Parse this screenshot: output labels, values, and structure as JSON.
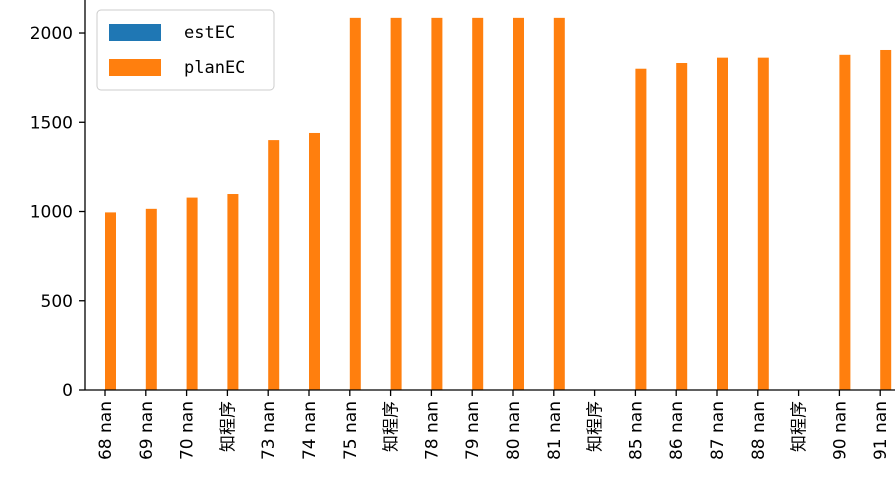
{
  "chart_data": {
    "type": "bar",
    "categories": [
      "68 nan",
      "69 nan",
      "70 nan",
      "知程序",
      "73 nan",
      "74 nan",
      "75 nan",
      "知程序",
      "78 nan",
      "79 nan",
      "80 nan",
      "81 nan",
      "知程序",
      "85 nan",
      "86 nan",
      "87 nan",
      "88 nan",
      "知程序",
      "90 nan",
      "91 nan"
    ],
    "series": [
      {
        "name": "estEC",
        "color": "#1f77b4",
        "values": [
          null,
          null,
          null,
          null,
          null,
          null,
          null,
          null,
          null,
          null,
          null,
          null,
          null,
          null,
          null,
          null,
          null,
          null,
          null,
          null
        ]
      },
      {
        "name": "planEC",
        "color": "#ff7f0e",
        "values": [
          995,
          1015,
          1078,
          1098,
          1400,
          1440,
          2085,
          2085,
          2085,
          2085,
          2085,
          2085,
          null,
          1800,
          1832,
          1862,
          1862,
          null,
          1878,
          1905
        ]
      }
    ],
    "yticks": [
      0,
      500,
      1000,
      1500,
      2000
    ],
    "ylim": [
      0,
      2185
    ],
    "legend": "top-left",
    "grid": false
  }
}
